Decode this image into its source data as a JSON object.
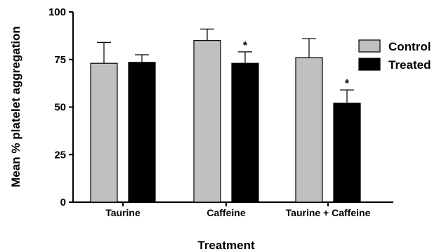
{
  "chart_data": {
    "type": "bar",
    "categories": [
      "Taurine",
      "Caffeine",
      "Taurine + Caffeine"
    ],
    "series": [
      {
        "name": "Control",
        "values": [
          73,
          85,
          76
        ],
        "errors": [
          11,
          6,
          10
        ],
        "color": "#c0c0c0",
        "significance": [
          "",
          "",
          ""
        ]
      },
      {
        "name": "Treated",
        "values": [
          73.5,
          73,
          52
        ],
        "errors": [
          4,
          6,
          7
        ],
        "color": "#000000",
        "significance": [
          "",
          "*",
          "*"
        ]
      }
    ],
    "xlabel": "Treatment",
    "ylabel": "Mean % platelet aggregation",
    "ylim": [
      0,
      100
    ],
    "yticks": [
      0,
      25,
      50,
      75,
      100
    ],
    "legend_position": "top-right",
    "grid": false
  }
}
